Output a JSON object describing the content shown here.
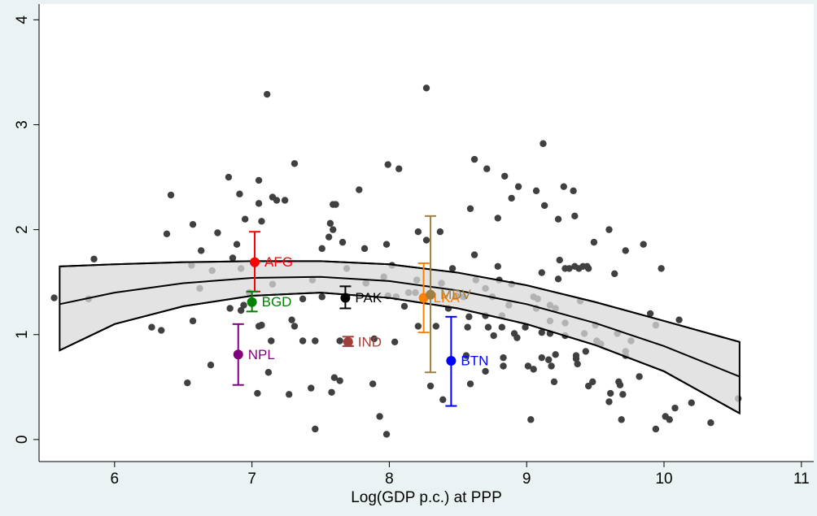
{
  "chart_data": {
    "type": "scatter",
    "xlabel": "Log(GDP p.c.) at PPP",
    "xlim": [
      5.45,
      11.09
    ],
    "ylim": [
      -0.21,
      4.15
    ],
    "xticks": [
      6,
      7,
      8,
      9,
      10,
      11
    ],
    "yticks": [
      0,
      1,
      2,
      3,
      4
    ],
    "points": {
      "color": "#404040",
      "x": [
        5.56,
        5.81,
        5.85,
        6.27,
        6.34,
        6.38,
        6.41,
        6.53,
        6.56,
        6.57,
        6.57,
        6.63,
        6.62,
        6.7,
        6.71,
        6.75,
        6.83,
        6.84,
        6.86,
        6.89,
        6.91,
        6.92,
        6.95,
        6.94,
        6.92,
        6.98,
        7.02,
        7.04,
        7.05,
        7.05,
        7.07,
        7.05,
        7.07,
        7.11,
        7.12,
        7.15,
        7.18,
        7.24,
        7.15,
        7.14,
        7.27,
        7.29,
        7.31,
        7.31,
        7.37,
        7.37,
        7.44,
        7.46,
        7.43,
        7.46,
        7.51,
        7.51,
        7.56,
        7.57,
        7.59,
        7.61,
        7.59,
        7.6,
        7.64,
        7.58,
        7.64,
        7.69,
        7.66,
        7.78,
        7.82,
        7.83,
        7.88,
        7.89,
        7.93,
        7.98,
        7.96,
        7.98,
        7.99,
        7.99,
        8.05,
        8.07,
        8.04,
        8.02,
        8.11,
        8.14,
        8.19,
        8.2,
        8.21,
        8.21,
        8.27,
        8.27,
        8.3,
        8.34,
        8.37,
        8.38,
        8.39,
        8.43,
        8.46,
        8.49,
        8.54,
        8.56,
        8.57,
        8.58,
        8.59,
        8.59,
        8.62,
        8.62,
        8.63,
        8.71,
        8.7,
        8.7,
        8.7,
        8.72,
        8.75,
        8.76,
        8.79,
        8.79,
        8.8,
        8.82,
        8.82,
        8.83,
        8.83,
        8.84,
        8.87,
        8.89,
        8.89,
        8.91,
        8.93,
        8.94,
        8.99,
        9.01,
        9.03,
        9.05,
        9.05,
        9.07,
        9.07,
        9.08,
        9.11,
        9.11,
        9.11,
        9.12,
        9.13,
        9.16,
        9.17,
        9.17,
        9.17,
        9.18,
        9.2,
        9.21,
        9.21,
        9.23,
        9.23,
        9.24,
        9.27,
        9.28,
        9.31,
        9.28,
        9.28,
        9.34,
        9.35,
        9.35,
        9.36,
        9.36,
        9.37,
        9.38,
        9.39,
        9.41,
        9.42,
        9.43,
        9.44,
        9.45,
        9.45,
        9.48,
        9.49,
        9.5,
        9.51,
        9.54,
        9.6,
        9.6,
        9.61,
        9.64,
        9.66,
        9.67,
        9.68,
        9.69,
        9.72,
        9.72,
        9.7,
        9.72,
        9.76,
        9.82,
        9.85,
        9.9,
        9.94,
        9.94,
        9.98,
        10.01,
        10.04,
        10.08,
        10.11,
        10.2,
        10.34,
        10.54
      ],
      "y": [
        1.35,
        1.34,
        1.72,
        1.07,
        1.04,
        1.96,
        2.33,
        0.54,
        1.66,
        1.13,
        2.05,
        1.8,
        1.44,
        0.71,
        1.61,
        1.97,
        2.5,
        1.25,
        1.73,
        1.86,
        2.34,
        1.63,
        2.1,
        1.28,
        1.23,
        1.4,
        1.67,
        0.44,
        2.47,
        2.25,
        2.08,
        1.08,
        1.09,
        3.29,
        0.64,
        2.31,
        2.28,
        2.28,
        1.48,
        0.94,
        0.43,
        1.14,
        2.63,
        1.08,
        0.94,
        1.34,
        1.52,
        0.1,
        0.49,
        0.94,
        1.36,
        1.82,
        1.93,
        2.06,
        2.24,
        2.24,
        2.0,
        0.59,
        0.56,
        0.45,
        0.94,
        1.63,
        1.88,
        2.38,
        1.82,
        1.49,
        0.53,
        0.96,
        0.22,
        0.05,
        1.55,
        1.86,
        2.62,
        1.37,
        1.36,
        2.58,
        0.93,
        1.66,
        1.27,
        1.4,
        1.4,
        1.52,
        1.98,
        1.08,
        3.35,
        1.9,
        0.51,
        1.08,
        1.98,
        1.49,
        0.38,
        1.25,
        1.63,
        1.37,
        1.36,
        0.8,
        1.07,
        1.17,
        0.53,
        2.2,
        2.67,
        1.76,
        1.52,
        2.58,
        1.44,
        1.18,
        0.65,
        1.07,
        1.36,
        0.99,
        1.65,
        2.11,
        1.52,
        1.18,
        1.07,
        0.78,
        0.7,
        2.51,
        1.28,
        1.48,
        2.3,
        1.01,
        0.97,
        2.41,
        1.07,
        0.7,
        0.19,
        0.67,
        1.36,
        1.25,
        2.37,
        1.34,
        1.02,
        0.78,
        1.59,
        2.82,
        2.23,
        0.76,
        1.28,
        1.13,
        1.01,
        0.7,
        0.55,
        1.25,
        0.81,
        1.53,
        2.1,
        1.71,
        2.41,
        1.63,
        1.63,
        1.11,
        0.99,
        2.37,
        2.13,
        1.65,
        0.77,
        0.8,
        0.72,
        1.63,
        1.32,
        1.65,
        1.01,
        0.84,
        1.65,
        1.63,
        0.51,
        0.55,
        1.88,
        1.09,
        0.94,
        0.91,
        2.0,
        0.36,
        0.44,
        1.58,
        1.01,
        0.55,
        0.52,
        0.19,
        0.84,
        0.8,
        0.43,
        1.8,
        0.94,
        0.6,
        1.86,
        1.2,
        1.09,
        0.1,
        1.63,
        0.22,
        0.19,
        0.3,
        1.14,
        0.35,
        0.16,
        0.39
      ]
    },
    "fit": {
      "band_color": "#d9d9d9",
      "x": [
        5.6,
        6,
        6.5,
        7,
        7.5,
        8,
        8.5,
        9,
        9.5,
        10,
        10.55
      ],
      "y": [
        1.29,
        1.4,
        1.49,
        1.54,
        1.55,
        1.51,
        1.42,
        1.29,
        1.11,
        0.89,
        0.6
      ],
      "upper": [
        1.65,
        1.67,
        1.69,
        1.7,
        1.7,
        1.67,
        1.59,
        1.47,
        1.31,
        1.13,
        0.93
      ],
      "lower": [
        0.85,
        1.1,
        1.27,
        1.37,
        1.4,
        1.35,
        1.25,
        1.1,
        0.9,
        0.65,
        0.25
      ]
    },
    "labeled": [
      {
        "name": "AFG",
        "color": "#ff0000",
        "x": 7.02,
        "y": 1.69,
        "low": 1.41,
        "high": 1.98
      },
      {
        "name": "BGD",
        "color": "#008000",
        "x": 7.0,
        "y": 1.31,
        "low": 1.22,
        "high": 1.41
      },
      {
        "name": "NPL",
        "color": "#800080",
        "x": 6.9,
        "y": 0.81,
        "low": 0.52,
        "high": 1.1
      },
      {
        "name": "PAK",
        "color": "#000000",
        "x": 7.68,
        "y": 1.35,
        "low": 1.25,
        "high": 1.46
      },
      {
        "name": "IND",
        "color": "#a0403c",
        "x": 7.7,
        "y": 0.93,
        "low": 0.89,
        "high": 0.98
      },
      {
        "name": "LKA",
        "color": "#ff8000",
        "x": 8.25,
        "y": 1.35,
        "low": 1.02,
        "high": 1.68
      },
      {
        "name": "MDV",
        "color": "#a08040",
        "x": 8.3,
        "y": 1.38,
        "low": 0.64,
        "high": 2.13
      },
      {
        "name": "BTN",
        "color": "#0000ff",
        "x": 8.45,
        "y": 0.75,
        "low": 0.32,
        "high": 1.17
      }
    ]
  }
}
